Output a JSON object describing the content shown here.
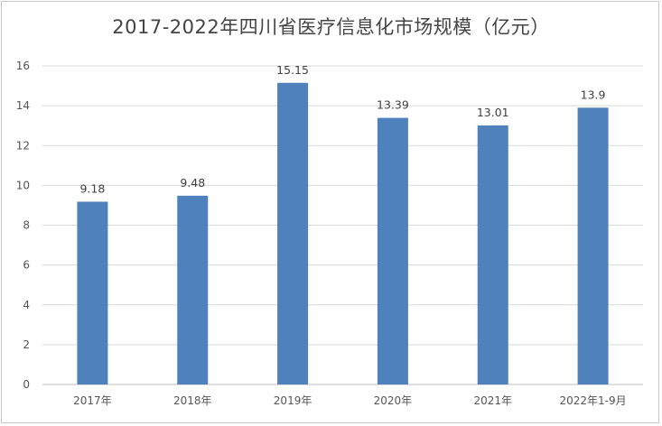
{
  "chart_data": {
    "type": "bar",
    "title": "2017-2022年四川省医疗信息化市场规模（亿元）",
    "categories": [
      "2017年",
      "2018年",
      "2019年",
      "2020年",
      "2021年",
      "2022年1-9月"
    ],
    "values": [
      9.18,
      9.48,
      15.15,
      13.39,
      13.01,
      13.9
    ],
    "data_labels": [
      "9.18",
      "9.48",
      "15.15",
      "13.39",
      "13.01",
      "13.9"
    ],
    "y_ticks": [
      "0",
      "2",
      "4",
      "6",
      "8",
      "10",
      "12",
      "14",
      "16"
    ],
    "ylim": [
      0,
      16
    ],
    "xlabel": "",
    "ylabel": "",
    "grid": true,
    "legend": "none",
    "bar_color": "#4f81bd"
  }
}
